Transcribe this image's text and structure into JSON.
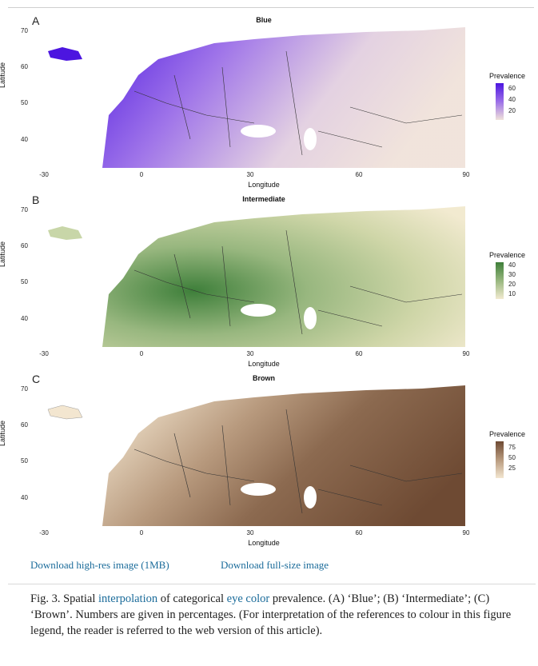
{
  "figure": {
    "panels": [
      {
        "letter": "A",
        "title": "Blue",
        "legend_title": "Prevalence",
        "legend_ticks": [
          "60",
          "40",
          "20"
        ],
        "colors": [
          "#4c15e0",
          "#9b6ee8",
          "#f0e2da"
        ]
      },
      {
        "letter": "B",
        "title": "Intermediate",
        "legend_title": "Prevalence",
        "legend_ticks": [
          "40",
          "30",
          "20",
          "10"
        ],
        "colors": [
          "#3e7f3a",
          "#98b77f",
          "#f2ead0"
        ]
      },
      {
        "letter": "C",
        "title": "Brown",
        "legend_title": "Prevalence",
        "legend_ticks": [
          "75",
          "50",
          "25"
        ],
        "colors": [
          "#6e4a33",
          "#b89a7e",
          "#f3e6d0"
        ]
      }
    ],
    "y_axis_label": "Latitude",
    "y_ticks": [
      "70",
      "60",
      "50",
      "40"
    ],
    "x_axis_label": "Longitude",
    "x_ticks": [
      "-30",
      "0",
      "30",
      "60",
      "90"
    ]
  },
  "downloads": {
    "high_res": "Download high-res image (1MB)",
    "full_size": "Download full-size image"
  },
  "caption": {
    "prefix": "Fig. 3. Spatial ",
    "link1": "interpolation",
    "middle": " of categorical ",
    "link2": "eye color",
    "suffix": " prevalence. (A) ‘Blue’; (B) ‘Intermediate’; (C) ‘Brown’. Numbers are given in percentages. (For interpretation of the references to colour in this figure legend, the reader is referred to the web version of this article)."
  },
  "accent_color": "#1a6b9a"
}
